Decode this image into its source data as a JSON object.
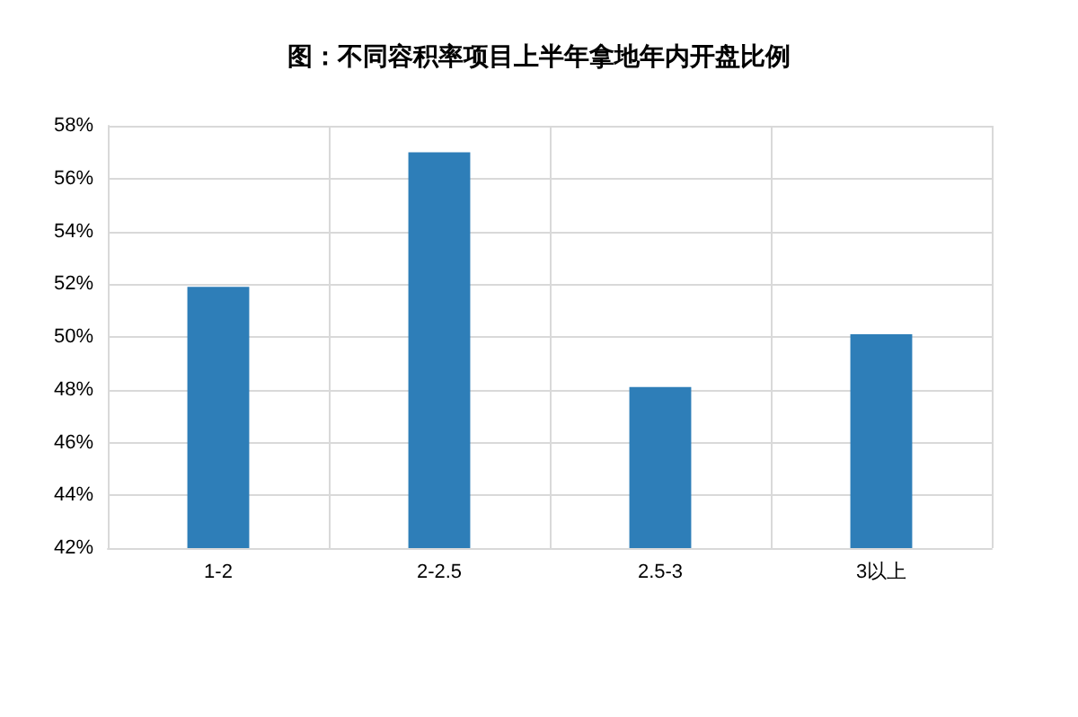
{
  "chart_data": {
    "type": "bar",
    "title": "图：不同容积率项目上半年拿地年内开盘比例",
    "categories": [
      "1-2",
      "2-2.5",
      "2.5-3",
      "3以上"
    ],
    "values": [
      51.9,
      57.0,
      48.1,
      50.1
    ],
    "color": "#2e7eb8",
    "ylim": [
      42,
      58
    ],
    "yticks": [
      {
        "value": 42,
        "label": "42%"
      },
      {
        "value": 44,
        "label": "44%"
      },
      {
        "value": 46,
        "label": "46%"
      },
      {
        "value": 48,
        "label": "48%"
      },
      {
        "value": 50,
        "label": "50%"
      },
      {
        "value": 52,
        "label": "52%"
      },
      {
        "value": 54,
        "label": "54%"
      },
      {
        "value": 56,
        "label": "56%"
      },
      {
        "value": 58,
        "label": "58%"
      }
    ],
    "grid": true
  }
}
